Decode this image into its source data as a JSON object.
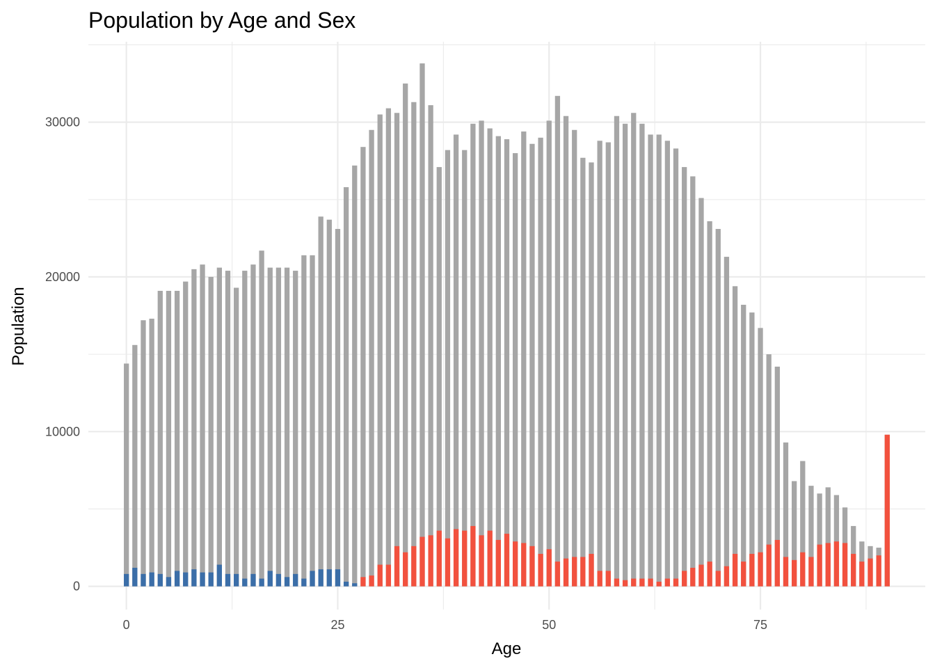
{
  "chart_data": {
    "type": "bar",
    "title": "Population by Age and Sex",
    "xlabel": "Age",
    "ylabel": "Population",
    "xlim": [
      -4.5,
      94.5
    ],
    "ylim": [
      -1500,
      35200
    ],
    "x_ticks": [
      0,
      25,
      50,
      75
    ],
    "y_ticks": [
      0,
      10000,
      20000,
      30000
    ],
    "grid": true,
    "legend": "none",
    "colors": {
      "total": "#a6a6a6",
      "young": "#3b6ea8",
      "old": "#f2513e"
    },
    "series": [
      {
        "key": "total",
        "x": [
          0,
          1,
          2,
          3,
          4,
          5,
          6,
          7,
          8,
          9,
          10,
          11,
          12,
          13,
          14,
          15,
          16,
          17,
          18,
          19,
          20,
          21,
          22,
          23,
          24,
          25,
          26,
          27,
          28,
          29,
          30,
          31,
          32,
          33,
          34,
          35,
          36,
          37,
          38,
          39,
          40,
          41,
          42,
          43,
          44,
          45,
          46,
          47,
          48,
          49,
          50,
          51,
          52,
          53,
          54,
          55,
          56,
          57,
          58,
          59,
          60,
          61,
          62,
          63,
          64,
          65,
          66,
          67,
          68,
          69,
          70,
          71,
          72,
          73,
          74,
          75,
          76,
          77,
          78,
          79,
          80,
          81,
          82,
          83,
          84,
          85,
          86,
          87,
          88,
          89,
          90
        ],
        "values": [
          14400,
          15600,
          17200,
          17300,
          19100,
          19100,
          19100,
          19700,
          20500,
          20800,
          20000,
          20600,
          20400,
          19300,
          20400,
          20800,
          21700,
          20600,
          20600,
          20600,
          20400,
          21400,
          21400,
          23900,
          23700,
          23100,
          25800,
          27200,
          28400,
          29500,
          30500,
          30900,
          30600,
          32500,
          31300,
          33800,
          31100,
          27100,
          28200,
          29200,
          28200,
          29900,
          30100,
          29600,
          29100,
          28900,
          28000,
          29400,
          28600,
          29000,
          30100,
          31700,
          30400,
          29500,
          27700,
          27400,
          28800,
          28700,
          30400,
          29900,
          30600,
          29900,
          29200,
          29200,
          28800,
          28300,
          27100,
          26500,
          25100,
          23600,
          23100,
          21300,
          19400,
          18200,
          17700,
          16700,
          15000,
          14200,
          9300,
          6800,
          8100,
          6500,
          6000,
          6400,
          5900,
          5100,
          3900,
          2900,
          2600,
          2500,
          9800
        ]
      },
      {
        "key": "young",
        "x": [
          0,
          1,
          2,
          3,
          4,
          5,
          6,
          7,
          8,
          9,
          10,
          11,
          12,
          13,
          14,
          15,
          16,
          17,
          18,
          19,
          20,
          21,
          22,
          23,
          24,
          25,
          26,
          27
        ],
        "values": [
          800,
          1200,
          800,
          900,
          800,
          600,
          1000,
          900,
          1100,
          900,
          900,
          1400,
          800,
          800,
          500,
          800,
          500,
          1000,
          800,
          600,
          800,
          500,
          1000,
          1100,
          1100,
          1100,
          300,
          200
        ]
      },
      {
        "key": "old",
        "x": [
          28,
          29,
          30,
          31,
          32,
          33,
          34,
          35,
          36,
          37,
          38,
          39,
          40,
          41,
          42,
          43,
          44,
          45,
          46,
          47,
          48,
          49,
          50,
          51,
          52,
          53,
          54,
          55,
          56,
          57,
          58,
          59,
          60,
          61,
          62,
          63,
          64,
          65,
          66,
          67,
          68,
          69,
          70,
          71,
          72,
          73,
          74,
          75,
          76,
          77,
          78,
          79,
          80,
          81,
          82,
          83,
          84,
          85,
          86,
          87,
          88,
          89,
          90
        ],
        "values": [
          600,
          700,
          1400,
          1400,
          2600,
          2200,
          2600,
          3200,
          3300,
          3600,
          3100,
          3700,
          3600,
          3900,
          3300,
          3600,
          3000,
          3400,
          2900,
          2800,
          2600,
          2100,
          2400,
          1600,
          1800,
          1900,
          1900,
          2100,
          1000,
          1000,
          500,
          400,
          500,
          500,
          500,
          300,
          500,
          500,
          1000,
          1200,
          1400,
          1600,
          1000,
          1300,
          2100,
          1600,
          2100,
          2200,
          2700,
          3000,
          1900,
          1700,
          2200,
          1900,
          2700,
          2800,
          2900,
          2800,
          2100,
          1600,
          1800,
          2000,
          9800
        ]
      }
    ]
  }
}
